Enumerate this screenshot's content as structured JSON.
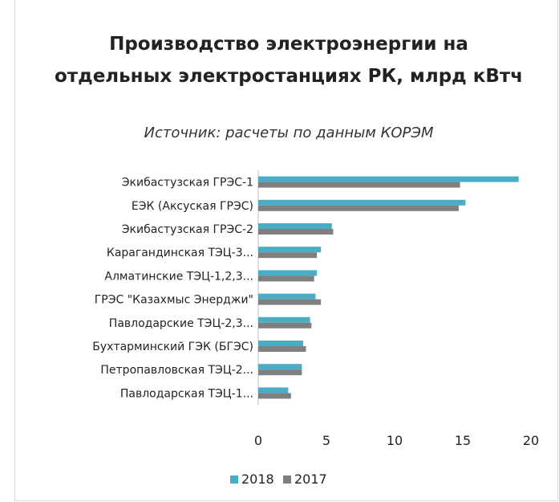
{
  "chart_data": {
    "type": "bar",
    "orientation": "horizontal",
    "title": "Производство электроэнергии на отдельных электростанциях РК, млрд кВтч",
    "subtitle": "Источник: расчеты по данным КОРЭМ",
    "categories": [
      "Экибастузская ГРЭС-1",
      "ЕЭК (Аксуская ГРЭС)",
      "Экибастузская ГРЭС-2",
      "Карагандинская ТЭЦ-3...",
      "Алматинские ТЭЦ-1,2,3...",
      "ГРЭС \"Казахмыс Энерджи\"",
      "Павлодарские ТЭЦ-2,3...",
      "Бухтарминский ГЭК (БГЭС)",
      "Петропавловская ТЭЦ-2...",
      "Павлодарская ТЭЦ-1..."
    ],
    "series": [
      {
        "name": "2018",
        "color": "#4bacc6",
        "values": [
          19.1,
          15.2,
          5.4,
          4.6,
          4.3,
          4.2,
          3.8,
          3.3,
          3.2,
          2.2
        ]
      },
      {
        "name": "2017",
        "color": "#7f7f7f",
        "values": [
          14.8,
          14.7,
          5.5,
          4.3,
          4.1,
          4.6,
          3.9,
          3.5,
          3.2,
          2.4
        ]
      }
    ],
    "xlim": [
      0,
      20
    ],
    "xticks": [
      "0",
      "5",
      "10",
      "15",
      "20"
    ],
    "legend_position": "bottom",
    "grid": false
  }
}
